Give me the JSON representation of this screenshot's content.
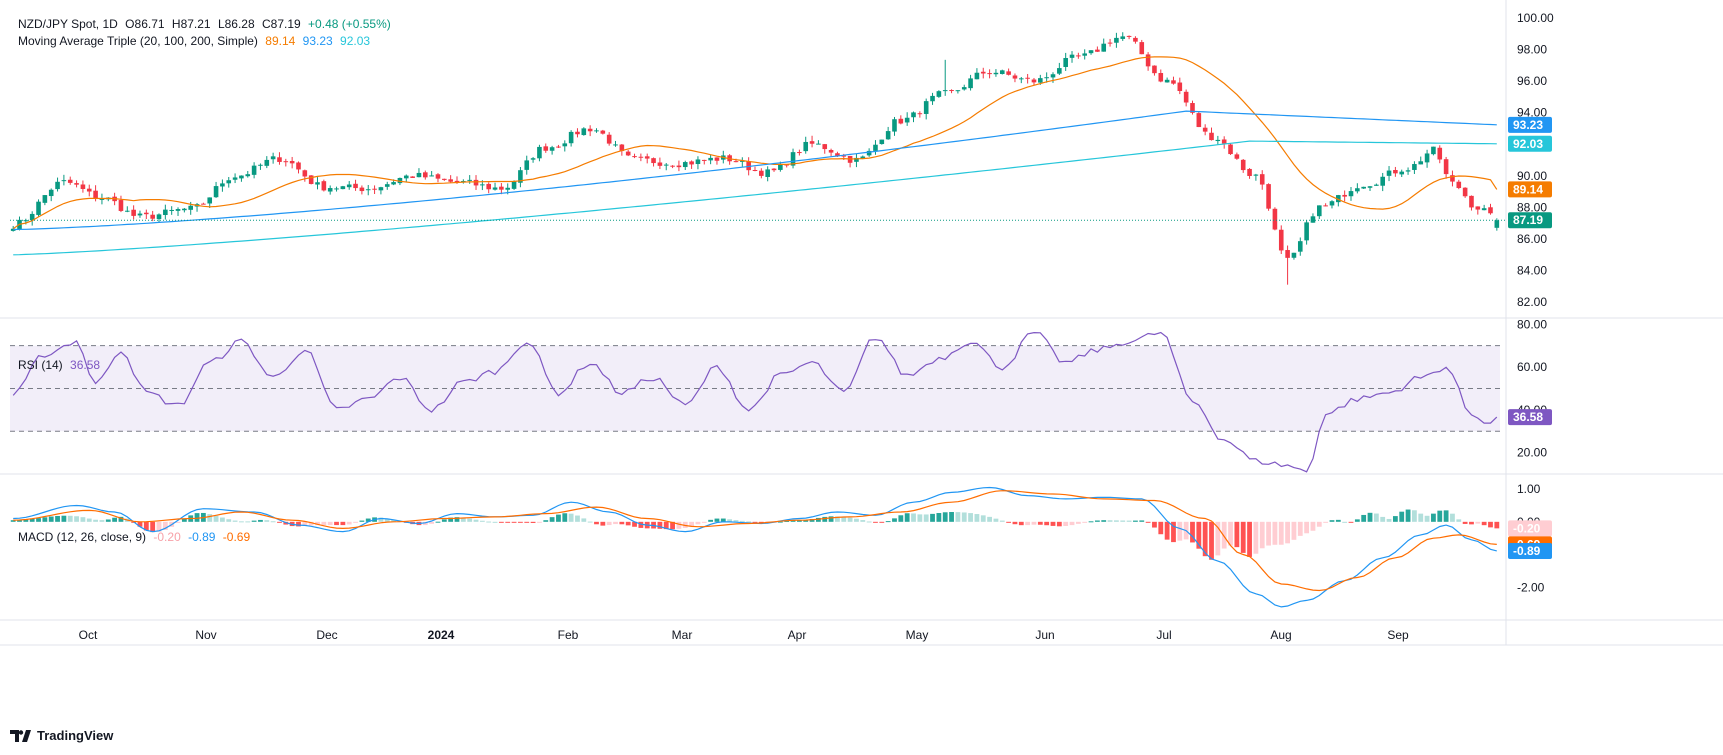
{
  "legend": {
    "symbol": "NZD/JPY Spot, 1D",
    "open_label": "O",
    "open": "86.71",
    "high_label": "H",
    "high": "87.21",
    "low_label": "L",
    "low": "86.28",
    "close_label": "C",
    "close": "87.19",
    "change": "+0.48 (+0.55%)",
    "ma_title": "Moving Average Triple (20, 100, 200, Simple)",
    "ma20": "89.14",
    "ma100": "93.23",
    "ma200": "92.03",
    "rsi_title": "RSI (14)",
    "rsi_value": "36.58",
    "macd_title": "MACD (12, 26, close, 9)",
    "macd_hist": "-0.20",
    "macd_line": "-0.89",
    "macd_signal": "-0.69"
  },
  "brand": "TradingView",
  "colors": {
    "up": "#089981",
    "down": "#f23645",
    "ma20": "#f57c00",
    "ma100": "#2196f3",
    "ma200": "#26c6da",
    "rsi": "#7e57c2",
    "macd": "#2196f3",
    "signal": "#ff6d00",
    "hist_up_strong": "#26a69a",
    "hist_up_weak": "#b2dfdb",
    "hist_dn_strong": "#ff5252",
    "hist_dn_weak": "#ffcdd2"
  },
  "chart_data": [
    {
      "type": "candlestick",
      "ylim": [
        81,
        100.5
      ],
      "y_ticks": [
        "100.00",
        "98.00",
        "96.00",
        "94.00",
        "92.00",
        "90.00",
        "88.00",
        "86.00",
        "84.00",
        "82.00"
      ],
      "x_ticks": [
        "Oct",
        "Nov",
        "Dec",
        "2024",
        "Feb",
        "Mar",
        "Apr",
        "May",
        "Jun",
        "Jul",
        "Aug",
        "Sep"
      ],
      "anchors_close": [
        [
          0,
          86.9
        ],
        [
          8,
          89.6
        ],
        [
          14,
          88.6
        ],
        [
          20,
          87.4
        ],
        [
          28,
          87.9
        ],
        [
          35,
          90.0
        ],
        [
          42,
          91.1
        ],
        [
          49,
          89.3
        ],
        [
          56,
          89.2
        ],
        [
          63,
          90.0
        ],
        [
          70,
          89.6
        ],
        [
          77,
          89.2
        ],
        [
          84,
          91.8
        ],
        [
          91,
          93.0
        ],
        [
          98,
          91.0
        ],
        [
          105,
          90.8
        ],
        [
          112,
          91.1
        ],
        [
          119,
          90.2
        ],
        [
          126,
          92.0
        ],
        [
          133,
          91.0
        ],
        [
          140,
          93.5
        ],
        [
          147,
          95.2
        ],
        [
          154,
          96.6
        ],
        [
          161,
          96.0
        ],
        [
          168,
          97.5
        ],
        [
          175,
          98.8
        ],
        [
          182,
          96.0
        ],
        [
          189,
          92.5
        ],
        [
          196,
          90.0
        ],
        [
          201,
          84.6
        ],
        [
          206,
          88.0
        ],
        [
          213,
          89.5
        ],
        [
          220,
          90.5
        ],
        [
          224,
          91.6
        ],
        [
          227,
          89.5
        ],
        [
          231,
          88.0
        ],
        [
          234,
          87.19
        ]
      ],
      "current_price": "87.19",
      "tags": {
        "price": "87.19",
        "ma20": "89.14",
        "ma100": "93.23",
        "ma200": "92.03"
      },
      "ma20_end": 89.14,
      "ma100_end": 93.23,
      "ma200_end": 92.03
    },
    {
      "type": "line",
      "name": "RSI",
      "ylim": [
        10,
        82
      ],
      "y_ticks": [
        "80.00",
        "60.00",
        "40.00",
        "20.00"
      ],
      "bands": [
        70,
        50,
        30
      ],
      "anchors": [
        [
          0,
          47
        ],
        [
          5,
          66
        ],
        [
          10,
          72
        ],
        [
          13,
          52
        ],
        [
          17,
          68
        ],
        [
          21,
          48
        ],
        [
          26,
          42
        ],
        [
          31,
          62
        ],
        [
          36,
          72
        ],
        [
          41,
          55
        ],
        [
          46,
          68
        ],
        [
          51,
          40
        ],
        [
          56,
          45
        ],
        [
          61,
          55
        ],
        [
          66,
          40
        ],
        [
          71,
          53
        ],
        [
          76,
          58
        ],
        [
          81,
          72
        ],
        [
          86,
          48
        ],
        [
          91,
          62
        ],
        [
          96,
          48
        ],
        [
          101,
          55
        ],
        [
          106,
          42
        ],
        [
          111,
          60
        ],
        [
          116,
          40
        ],
        [
          121,
          56
        ],
        [
          126,
          62
        ],
        [
          131,
          48
        ],
        [
          136,
          74
        ],
        [
          141,
          56
        ],
        [
          146,
          64
        ],
        [
          151,
          72
        ],
        [
          156,
          60
        ],
        [
          161,
          76
        ],
        [
          166,
          62
        ],
        [
          171,
          68
        ],
        [
          176,
          72
        ],
        [
          181,
          76
        ],
        [
          186,
          44
        ],
        [
          191,
          26
        ],
        [
          196,
          16
        ],
        [
          201,
          14
        ],
        [
          204,
          11
        ],
        [
          207,
          38
        ],
        [
          212,
          45
        ],
        [
          217,
          48
        ],
        [
          222,
          55
        ],
        [
          226,
          60
        ],
        [
          230,
          38
        ],
        [
          233,
          34
        ],
        [
          234,
          36.58
        ]
      ],
      "last_value": "36.58"
    },
    {
      "type": "macd",
      "ylim": [
        -3.0,
        1.4
      ],
      "y_ticks": [
        "1.00",
        "0.00",
        "-2.00"
      ],
      "macd_anchors": [
        [
          0,
          0.1
        ],
        [
          10,
          0.5
        ],
        [
          16,
          0.3
        ],
        [
          22,
          -0.3
        ],
        [
          30,
          0.4
        ],
        [
          38,
          0.3
        ],
        [
          45,
          -0.1
        ],
        [
          52,
          -0.3
        ],
        [
          58,
          0.1
        ],
        [
          64,
          -0.05
        ],
        [
          70,
          0.25
        ],
        [
          76,
          0.15
        ],
        [
          82,
          0.2
        ],
        [
          88,
          0.6
        ],
        [
          94,
          0.3
        ],
        [
          100,
          -0.1
        ],
        [
          106,
          -0.3
        ],
        [
          112,
          0.0
        ],
        [
          118,
          -0.05
        ],
        [
          124,
          0.1
        ],
        [
          130,
          0.3
        ],
        [
          136,
          0.2
        ],
        [
          142,
          0.6
        ],
        [
          148,
          0.9
        ],
        [
          154,
          1.05
        ],
        [
          160,
          0.8
        ],
        [
          166,
          0.7
        ],
        [
          172,
          0.75
        ],
        [
          178,
          0.7
        ],
        [
          184,
          -0.2
        ],
        [
          190,
          -1.2
        ],
        [
          196,
          -2.2
        ],
        [
          200,
          -2.6
        ],
        [
          204,
          -2.4
        ],
        [
          210,
          -1.8
        ],
        [
          216,
          -1.1
        ],
        [
          222,
          -0.4
        ],
        [
          226,
          -0.1
        ],
        [
          230,
          -0.55
        ],
        [
          234,
          -0.89
        ]
      ],
      "signal_anchors": [
        [
          0,
          0.05
        ],
        [
          12,
          0.35
        ],
        [
          20,
          0.0
        ],
        [
          28,
          0.1
        ],
        [
          36,
          0.3
        ],
        [
          44,
          0.05
        ],
        [
          52,
          -0.2
        ],
        [
          60,
          0.0
        ],
        [
          68,
          0.1
        ],
        [
          76,
          0.15
        ],
        [
          84,
          0.25
        ],
        [
          92,
          0.45
        ],
        [
          100,
          0.1
        ],
        [
          108,
          -0.15
        ],
        [
          116,
          -0.05
        ],
        [
          124,
          0.05
        ],
        [
          132,
          0.15
        ],
        [
          140,
          0.3
        ],
        [
          148,
          0.6
        ],
        [
          156,
          0.95
        ],
        [
          164,
          0.85
        ],
        [
          172,
          0.7
        ],
        [
          180,
          0.65
        ],
        [
          188,
          0.1
        ],
        [
          194,
          -1.0
        ],
        [
          200,
          -1.9
        ],
        [
          206,
          -2.1
        ],
        [
          212,
          -1.7
        ],
        [
          218,
          -1.1
        ],
        [
          224,
          -0.5
        ],
        [
          228,
          -0.4
        ],
        [
          234,
          -0.69
        ]
      ],
      "last_hist": "-0.20",
      "last_macd": "-0.89",
      "last_signal": "-0.69"
    }
  ]
}
